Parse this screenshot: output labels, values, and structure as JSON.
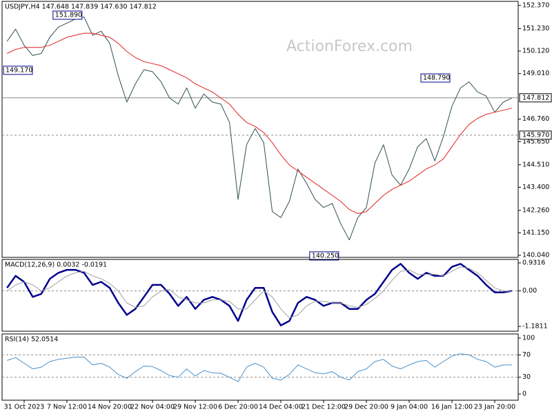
{
  "watermark": "ActionForex.com",
  "chart_data": [
    {
      "type": "line",
      "title": "USDJPY,H4  147.648 147.839 147.630 147.812",
      "categories": [
        null,
        null,
        "31 Oct 2023",
        null,
        null,
        null,
        null,
        "7 Nov 12:00",
        null,
        null,
        null,
        null,
        "14 Nov 20:00",
        null,
        null,
        null,
        null,
        "22 Nov 04:00",
        null,
        null,
        null,
        null,
        "29 Nov 12:00",
        null,
        null,
        null,
        null,
        "6 Dec 20:00",
        null,
        null,
        null,
        null,
        "14 Dec 04:00",
        null,
        null,
        null,
        null,
        "21 Dec 12:00",
        null,
        null,
        null,
        null,
        "29 Dec 20:00",
        null,
        null,
        null,
        null,
        "9 Jan 04:00",
        null,
        null,
        null,
        null,
        "16 Jan 12:00",
        null,
        null,
        null,
        null,
        "23 Jan 20:00",
        null,
        null
      ],
      "series": [
        {
          "name": "USDJPY",
          "color": "#2f4f4f",
          "width": 1,
          "values": [
            150.6,
            151.2,
            150.4,
            149.9,
            150.0,
            150.8,
            151.3,
            151.5,
            151.7,
            151.8,
            150.9,
            151.1,
            150.5,
            148.9,
            147.6,
            148.5,
            149.2,
            149.1,
            148.6,
            147.8,
            147.5,
            148.3,
            147.3,
            148.0,
            147.6,
            147.5,
            146.6,
            142.8,
            145.5,
            146.3,
            145.6,
            142.2,
            141.9,
            142.7,
            144.3,
            143.6,
            142.8,
            142.4,
            142.6,
            141.6,
            140.8,
            141.9,
            142.4,
            144.6,
            145.5,
            144.0,
            143.5,
            144.3,
            145.4,
            145.8,
            144.7,
            145.9,
            147.4,
            148.3,
            148.6,
            148.1,
            147.9,
            147.1,
            147.6,
            147.8
          ]
        },
        {
          "name": "MA",
          "color": "#e02020",
          "width": 1,
          "values": [
            150.0,
            150.2,
            150.3,
            150.3,
            150.3,
            150.4,
            150.6,
            150.8,
            150.9,
            151.0,
            151.0,
            150.9,
            150.8,
            150.5,
            150.1,
            149.8,
            149.6,
            149.5,
            149.4,
            149.2,
            149.0,
            148.8,
            148.5,
            148.3,
            148.1,
            147.8,
            147.5,
            147.0,
            146.6,
            146.4,
            146.1,
            145.6,
            145.0,
            144.5,
            144.2,
            143.9,
            143.6,
            143.3,
            143.0,
            142.7,
            142.3,
            142.1,
            142.2,
            142.6,
            143.0,
            143.3,
            143.5,
            143.7,
            144.0,
            144.3,
            144.5,
            144.8,
            145.4,
            146.0,
            146.5,
            146.8,
            147.0,
            147.1,
            147.2,
            147.3
          ]
        }
      ],
      "ylim": [
        139.94,
        152.57
      ],
      "yticks": [
        {
          "value": 152.37,
          "label": "152.370"
        },
        {
          "value": 151.23,
          "label": "151.230"
        },
        {
          "value": 150.12,
          "label": "150.120"
        },
        {
          "value": 149.01,
          "label": "149.010"
        },
        {
          "value": 146.76,
          "label": "146.760"
        },
        {
          "value": 145.65,
          "label": "145.650"
        },
        {
          "value": 144.51,
          "label": "144.510"
        },
        {
          "value": 143.4,
          "label": "143.400"
        },
        {
          "value": 142.26,
          "label": "142.260"
        },
        {
          "value": 141.15,
          "label": "141.150"
        },
        {
          "value": 140.04,
          "label": "140.040"
        }
      ],
      "hlines": [
        {
          "value": 147.812,
          "label": "147.812",
          "style": "solid"
        },
        {
          "value": 145.97,
          "label": "145.970",
          "style": "dashed"
        }
      ],
      "annotations": [
        {
          "label": "151.890",
          "index": 9,
          "value": 151.89
        },
        {
          "label": "149.170",
          "index": 2,
          "value": 149.17
        },
        {
          "label": "148.790",
          "index": 52,
          "value": 148.79
        },
        {
          "label": "140.250",
          "index": 39,
          "value": 140.25
        }
      ]
    },
    {
      "type": "line",
      "title": "MACD(12,26,9) 0.0032 -0.0191",
      "series": [
        {
          "name": "MACD",
          "color": "#00008b",
          "width": 2.5,
          "values": [
            0.1,
            0.5,
            0.3,
            -0.2,
            -0.1,
            0.4,
            0.6,
            0.7,
            0.7,
            0.6,
            0.2,
            0.3,
            0.1,
            -0.4,
            -0.8,
            -0.6,
            -0.2,
            0.2,
            0.2,
            -0.1,
            -0.5,
            -0.2,
            -0.6,
            -0.3,
            -0.2,
            -0.3,
            -0.5,
            -1.0,
            -0.3,
            0.1,
            0.1,
            -0.7,
            -1.15,
            -1.0,
            -0.4,
            -0.2,
            -0.3,
            -0.5,
            -0.4,
            -0.4,
            -0.6,
            -0.6,
            -0.3,
            -0.1,
            0.3,
            0.7,
            0.9,
            0.6,
            0.4,
            0.6,
            0.5,
            0.5,
            0.8,
            0.9,
            0.7,
            0.5,
            0.2,
            -0.05,
            -0.05,
            0.0
          ]
        },
        {
          "name": "Signal",
          "color": "#a0a0a0",
          "width": 1,
          "values": [
            0.0,
            0.2,
            0.3,
            0.2,
            0.0,
            0.1,
            0.3,
            0.5,
            0.6,
            0.65,
            0.5,
            0.4,
            0.25,
            0.0,
            -0.4,
            -0.55,
            -0.5,
            -0.2,
            0.0,
            0.05,
            -0.2,
            -0.3,
            -0.4,
            -0.4,
            -0.3,
            -0.3,
            -0.35,
            -0.6,
            -0.6,
            -0.3,
            0.0,
            -0.2,
            -0.6,
            -0.9,
            -0.8,
            -0.5,
            -0.35,
            -0.35,
            -0.4,
            -0.4,
            -0.5,
            -0.55,
            -0.45,
            -0.25,
            0.0,
            0.35,
            0.65,
            0.7,
            0.55,
            0.55,
            0.55,
            0.5,
            0.65,
            0.8,
            0.75,
            0.6,
            0.35,
            0.1,
            0.0,
            -0.02
          ]
        }
      ],
      "ylim": [
        -1.3418,
        1.0464
      ],
      "yticks": [
        0.9316,
        {
          "value": 0,
          "label": "0.00"
        },
        -1.1811
      ],
      "hlines": [
        {
          "value": 0,
          "style": "dashed"
        }
      ]
    },
    {
      "type": "line",
      "title": "RSI(14) 52.0514",
      "series": [
        {
          "name": "RSI",
          "color": "#4a90c8",
          "width": 1,
          "values": [
            60,
            65,
            55,
            45,
            48,
            58,
            62,
            64,
            66,
            66,
            52,
            55,
            48,
            35,
            28,
            40,
            50,
            49,
            42,
            33,
            30,
            45,
            32,
            42,
            38,
            37,
            30,
            22,
            48,
            55,
            48,
            28,
            25,
            35,
            52,
            45,
            38,
            36,
            40,
            30,
            25,
            40,
            45,
            58,
            62,
            50,
            45,
            52,
            58,
            60,
            48,
            58,
            68,
            72,
            70,
            62,
            58,
            48,
            52,
            52
          ]
        }
      ],
      "ylim": [
        -11.1,
        107.4
      ],
      "yticks": [
        100,
        70,
        30,
        0
      ],
      "hlines": [
        {
          "value": 70,
          "style": "dashed"
        },
        {
          "value": 30,
          "style": "dashed"
        }
      ]
    }
  ]
}
